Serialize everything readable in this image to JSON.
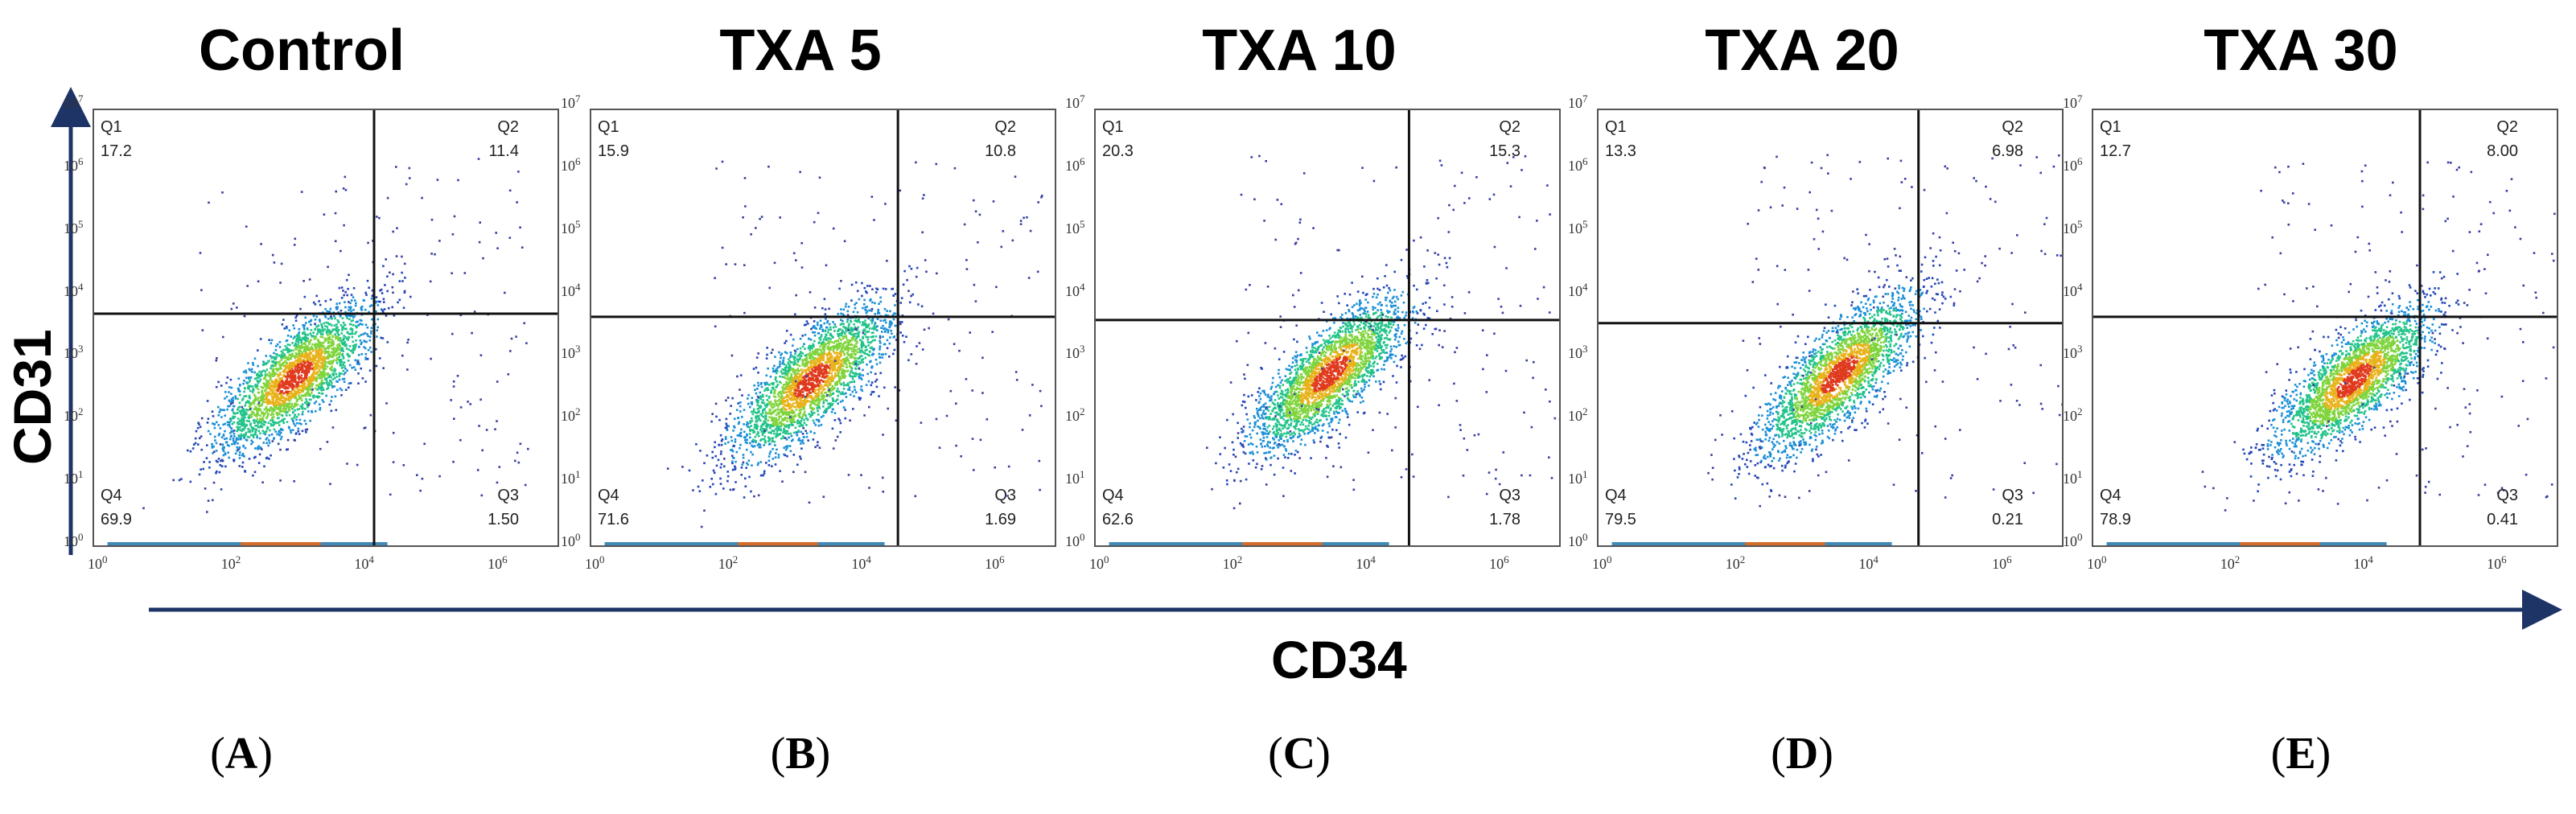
{
  "chart_data": {
    "type": "scatter",
    "subtype": "flow-cytometry-density",
    "xlabel": "CD34",
    "ylabel": "CD31",
    "x_ticks": [
      "10^0",
      "10^2",
      "10^4",
      "10^6"
    ],
    "y_ticks": [
      "10^0",
      "10^1",
      "10^2",
      "10^3",
      "10^4",
      "10^5",
      "10^6",
      "10^7"
    ],
    "xlim": [
      0,
      7
    ],
    "ylim": [
      0,
      7
    ],
    "quadrant_labels": [
      "Q1",
      "Q2",
      "Q3",
      "Q4"
    ],
    "panels": [
      {
        "letter": "A",
        "title": "Control",
        "gate_x": 4.2,
        "gate_y": 3.75,
        "Q1": "17.2",
        "Q2": "11.4",
        "Q3": "1.50",
        "Q4": "69.9",
        "cx": 3.0,
        "cy": 2.75,
        "slope": 1.0
      },
      {
        "letter": "B",
        "title": "TXA 5",
        "gate_x": 4.6,
        "gate_y": 3.7,
        "Q1": "15.9",
        "Q2": "10.8",
        "Q3": "1.69",
        "Q4": "71.6",
        "cx": 3.3,
        "cy": 2.7,
        "slope": 1.05
      },
      {
        "letter": "C",
        "title": "TXA 10",
        "gate_x": 4.7,
        "gate_y": 3.65,
        "Q1": "20.3",
        "Q2": "15.3",
        "Q3": "1.78",
        "Q4": "62.6",
        "cx": 3.5,
        "cy": 2.8,
        "slope": 1.05
      },
      {
        "letter": "D",
        "title": "TXA 20",
        "gate_x": 4.8,
        "gate_y": 3.6,
        "Q1": "13.3",
        "Q2": "6.98",
        "Q3": "0.21",
        "Q4": "79.5",
        "cx": 3.6,
        "cy": 2.8,
        "slope": 1.1
      },
      {
        "letter": "E",
        "title": "TXA 30",
        "gate_x": 4.9,
        "gate_y": 3.7,
        "Q1": "12.7",
        "Q2": "8.00",
        "Q3": "0.41",
        "Q4": "78.9",
        "cx": 3.9,
        "cy": 2.7,
        "slope": 1.0
      }
    ]
  }
}
